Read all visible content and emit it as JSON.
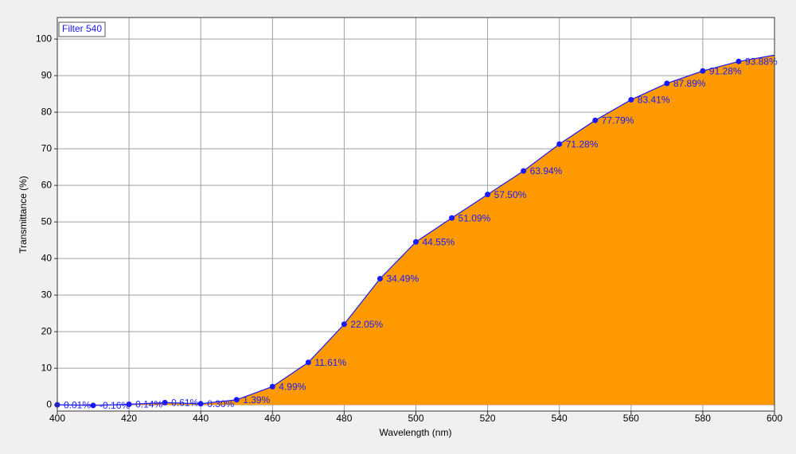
{
  "chart_data": {
    "type": "area",
    "legend": "Filter 540",
    "x_label": "Wavelength (nm)",
    "y_label": "Transmittance (%)",
    "x": [
      400,
      410,
      420,
      430,
      440,
      450,
      460,
      470,
      480,
      490,
      500,
      510,
      520,
      530,
      540,
      550,
      560,
      570,
      580,
      590,
      600
    ],
    "values": [
      0.01,
      -0.16,
      0.14,
      0.61,
      0.3,
      1.39,
      4.99,
      11.61,
      22.05,
      34.49,
      44.55,
      51.09,
      57.5,
      63.94,
      71.28,
      77.79,
      83.41,
      87.89,
      91.28,
      93.88,
      95.6
    ],
    "value_labels": [
      "0.01%",
      "-0.16%",
      "0.14%",
      "0.61%",
      "0.30%",
      "1.39%",
      "4.99%",
      "11.61%",
      "22.05%",
      "34.49%",
      "44.55%",
      "51.09%",
      "57.50%",
      "63.94%",
      "71.28%",
      "77.79%",
      "83.41%",
      "87.89%",
      "91.28%",
      "93.88%",
      null
    ],
    "color": "#ff9900",
    "line_color": "#1a1aff",
    "xlim": [
      400,
      600
    ],
    "ylim": [
      -1.7,
      105.9
    ],
    "xticks": [
      400,
      420,
      440,
      460,
      480,
      500,
      520,
      540,
      560,
      580,
      600
    ],
    "yticks": [
      0,
      10,
      20,
      30,
      40,
      50,
      60,
      70,
      80,
      90,
      100
    ],
    "grid": true
  }
}
